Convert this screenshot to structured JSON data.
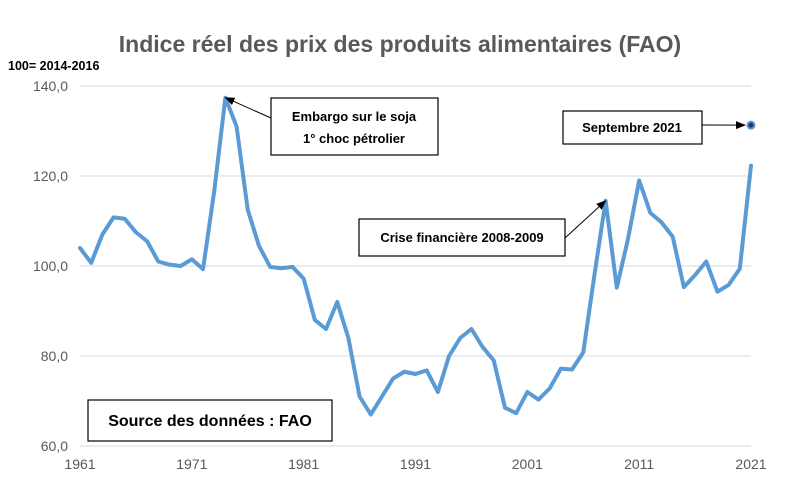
{
  "colors": {
    "line": "#5b9bd5",
    "grid": "#d9d9d9",
    "text": "#595959",
    "marker": "#1f3864"
  },
  "chart_data": {
    "type": "line",
    "title": "Indice réel des prix des produits alimentaires (FAO)",
    "unit_label": "100= 2014-2016",
    "xlabel": "",
    "ylabel": "",
    "xlim": [
      1961,
      2021
    ],
    "ylim": [
      60,
      140
    ],
    "y_ticks": [
      "60,0",
      "80,0",
      "100,0",
      "120,0",
      "140,0"
    ],
    "x_ticks": [
      "1961",
      "1971",
      "1981",
      "1991",
      "2001",
      "2011",
      "2021"
    ],
    "grid": true,
    "series": [
      {
        "name": "Indice réel des prix des produits alimentaires",
        "x": [
          1961,
          1962,
          1963,
          1964,
          1965,
          1966,
          1967,
          1968,
          1969,
          1970,
          1971,
          1972,
          1973,
          1974,
          1975,
          1976,
          1977,
          1978,
          1979,
          1980,
          1981,
          1982,
          1983,
          1984,
          1985,
          1986,
          1987,
          1988,
          1989,
          1990,
          1991,
          1992,
          1993,
          1994,
          1995,
          1996,
          1997,
          1998,
          1999,
          2000,
          2001,
          2002,
          2003,
          2004,
          2005,
          2006,
          2007,
          2008,
          2009,
          2010,
          2011,
          2012,
          2013,
          2014,
          2015,
          2016,
          2017,
          2018,
          2019,
          2020,
          2021
        ],
        "values": [
          104,
          100.7,
          107,
          110.8,
          110.5,
          107.5,
          105.5,
          101,
          100.3,
          100,
          101.5,
          99.3,
          116.6,
          137.4,
          131,
          112.5,
          104.5,
          99.8,
          99.5,
          99.8,
          97.2,
          88,
          86,
          92,
          84,
          71,
          67,
          71,
          75,
          76.5,
          76,
          76.8,
          72,
          80,
          84,
          86,
          82,
          79,
          68.5,
          67.3,
          72,
          70.3,
          72.8,
          77.2,
          77,
          80.8,
          98,
          114.5,
          95.2,
          106,
          119,
          111.8,
          109.7,
          106.5,
          95.3,
          98,
          101,
          94.3,
          95.8,
          99.4,
          122.3
        ]
      },
      {
        "name": "Septembre 2021",
        "x": [
          2021
        ],
        "values": [
          131.3
        ]
      }
    ],
    "annotations": [
      {
        "text_lines": [
          "Embargo sur le soja",
          "1° choc pétrolier"
        ],
        "x": 1974,
        "y": 137.4
      },
      {
        "text_lines": [
          "Septembre 2021"
        ],
        "x": 2021,
        "y": 131.3
      },
      {
        "text_lines": [
          "Crise financière 2008-2009"
        ],
        "x": 2008,
        "y": 114.5
      }
    ],
    "source": "Source des données : FAO"
  }
}
